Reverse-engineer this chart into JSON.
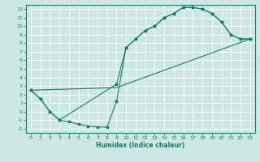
{
  "title": "",
  "xlabel": "Humidex (Indice chaleur)",
  "bg_color": "#cce8e4",
  "grid_color": "#ffffff",
  "line_color": "#1a7a6e",
  "xlim": [
    -0.5,
    23.5
  ],
  "ylim": [
    -2.5,
    12.5
  ],
  "xticks": [
    0,
    1,
    2,
    3,
    4,
    5,
    6,
    7,
    8,
    9,
    10,
    11,
    12,
    13,
    14,
    15,
    16,
    17,
    18,
    19,
    20,
    21,
    22,
    23
  ],
  "yticks": [
    -2,
    -1,
    0,
    1,
    2,
    3,
    4,
    5,
    6,
    7,
    8,
    9,
    10,
    11,
    12
  ],
  "curve1_x": [
    0,
    1,
    2,
    3,
    4,
    5,
    6,
    7,
    8,
    9,
    10,
    11,
    12,
    13,
    14,
    15,
    16,
    17,
    18,
    19,
    20,
    21,
    22,
    23
  ],
  "curve1_y": [
    2.5,
    1.5,
    0.0,
    -1.0,
    -1.2,
    -1.5,
    -1.7,
    -1.8,
    -1.85,
    1.2,
    7.5,
    8.5,
    9.5,
    10.0,
    11.0,
    11.5,
    12.2,
    12.2,
    12.0,
    11.5,
    10.5,
    9.0,
    8.5,
    8.5
  ],
  "curve2_x": [
    0,
    9,
    23
  ],
  "curve2_y": [
    2.5,
    2.8,
    8.5
  ],
  "curve3_x": [
    0,
    1,
    2,
    3,
    9,
    10,
    11,
    12,
    13,
    14,
    15,
    16,
    17,
    18,
    19,
    20,
    21,
    22,
    23
  ],
  "curve3_y": [
    2.5,
    1.5,
    0.0,
    -1.0,
    3.2,
    7.5,
    8.5,
    9.5,
    10.0,
    11.0,
    11.5,
    12.2,
    12.2,
    12.0,
    11.5,
    10.5,
    9.0,
    8.5,
    8.5
  ]
}
